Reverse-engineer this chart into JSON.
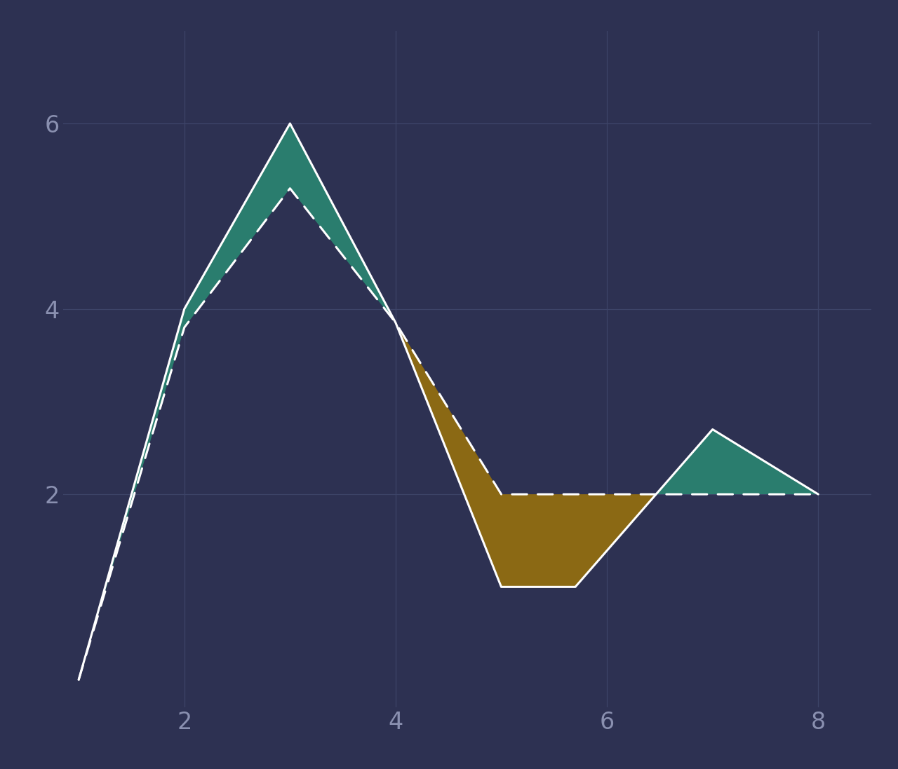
{
  "background_color": "#2d3152",
  "grid_color": "#3d4468",
  "line1_color": "#ffffff",
  "line2_color": "#ffffff",
  "fill_above_color": "#2a7d6e",
  "fill_below_color": "#8b6914",
  "line1_x": [
    1.0,
    2.0,
    3.0,
    4.0,
    5.0,
    5.7,
    7.0,
    8.0
  ],
  "line1_y": [
    0.0,
    4.0,
    6.0,
    3.85,
    1.0,
    1.0,
    2.7,
    2.0
  ],
  "line2_x": [
    1.0,
    2.0,
    3.0,
    4.0,
    5.0,
    5.7,
    6.0,
    8.0
  ],
  "line2_y": [
    0.0,
    3.8,
    5.3,
    3.85,
    2.0,
    2.0,
    2.0,
    2.0
  ],
  "xlim": [
    0.85,
    8.5
  ],
  "ylim": [
    -0.3,
    7.0
  ],
  "xticks": [
    2,
    4,
    6,
    8
  ],
  "yticks": [
    2,
    4,
    6
  ],
  "tick_color": "#8a90b0",
  "tick_fontsize": 24,
  "linewidth": 2.2,
  "dashes": [
    7,
    5
  ]
}
